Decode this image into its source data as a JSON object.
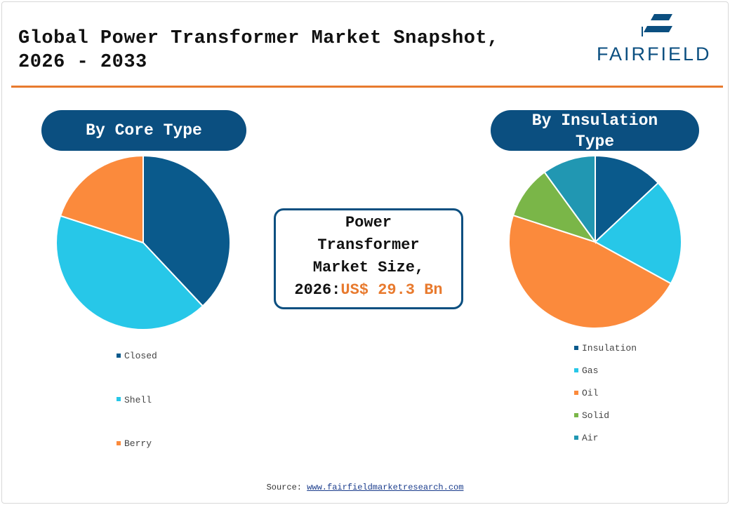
{
  "header": {
    "title_line1": "Global Power Transformer Market Snapshot,",
    "title_line2": "2026 - 2033",
    "logo_text": "FAIRFIELD"
  },
  "center": {
    "line1": "Power",
    "line2": "Transformer",
    "line3": "Market Size,",
    "line4_prefix": "2026:",
    "line4_value": "US$ 29.3 Bn"
  },
  "footer": {
    "source_label": "Source:",
    "source_link": "www.fairfieldmarketresearch.com"
  },
  "colors": {
    "brand": "#0b4f80",
    "accent": "#e87a2e"
  },
  "chart_data": [
    {
      "type": "pie",
      "title": "By Core Type",
      "categories": [
        "Closed",
        "Shell",
        "Berry"
      ],
      "values": [
        38,
        42,
        20
      ],
      "colors": [
        "#0a5a8c",
        "#27c7e8",
        "#fb8a3c"
      ],
      "legend": "bottom"
    },
    {
      "type": "pie",
      "title": "By Insulation Type",
      "categories": [
        "Insulation",
        "Gas",
        "Oil",
        "Solid",
        "Air"
      ],
      "values": [
        13,
        20,
        47,
        10,
        10
      ],
      "colors": [
        "#0a5a8c",
        "#27c7e8",
        "#fb8a3c",
        "#7ab648",
        "#2197b2"
      ],
      "legend": "bottom"
    }
  ]
}
